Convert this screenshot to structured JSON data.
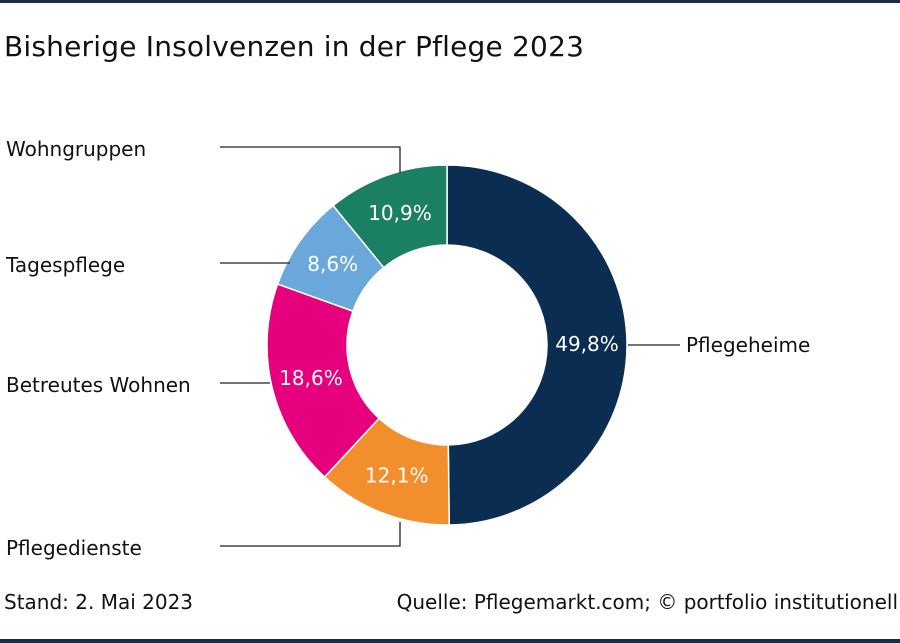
{
  "title": "Bisherige Insolvenzen in der Pflege 2023",
  "footer": {
    "date": "Stand: 2. Mai 2023",
    "source": "Quelle: Pflegemarkt.com; © portfolio institutionell"
  },
  "colors": {
    "Pflegeheime": "#0b2d52",
    "Pflegedienste": "#f28e2b",
    "Betreutes Wohnen": "#e6007e",
    "Tagespflege": "#6aa8dc",
    "Wohngruppen": "#1b7f64",
    "rule": "#1c2b47"
  },
  "chart_data": {
    "type": "pie",
    "variant": "donut",
    "categories": [
      "Pflegeheime",
      "Pflegedienste",
      "Betreutes Wohnen",
      "Tagespflege",
      "Wohngruppen"
    ],
    "values": [
      49.8,
      12.1,
      18.6,
      8.6,
      10.9
    ],
    "value_labels": [
      "49,8%",
      "12,1%",
      "18,6%",
      "8,6%",
      "10,9%"
    ],
    "unit": "%"
  }
}
